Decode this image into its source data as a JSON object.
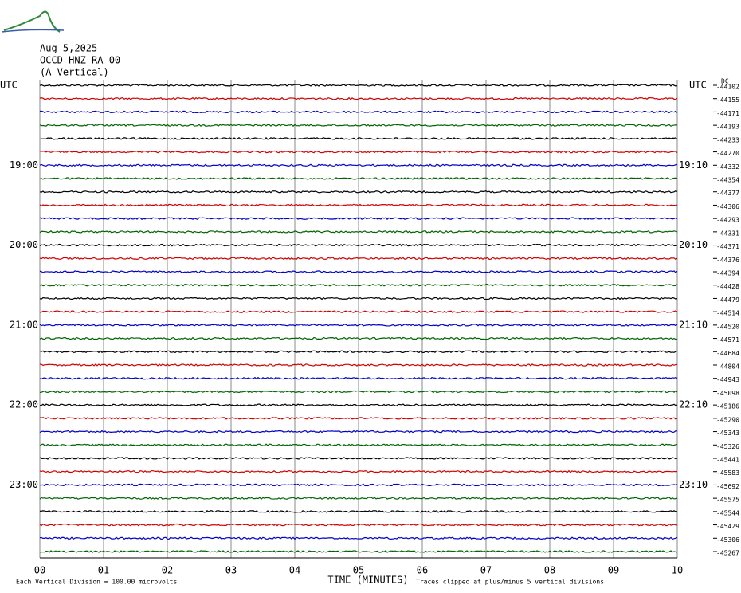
{
  "header": {
    "date": "Aug 5,2025",
    "station": "OCCD HNZ RA 00",
    "component": "(A Vertical)"
  },
  "left_labels": [
    {
      "row": 0,
      "text": "UTC"
    },
    {
      "row": 6,
      "text": "19:00"
    },
    {
      "row": 12,
      "text": "20:00"
    },
    {
      "row": 18,
      "text": "21:00"
    },
    {
      "row": 24,
      "text": "22:00"
    },
    {
      "row": 30,
      "text": "23:00"
    }
  ],
  "right_labels": [
    {
      "row": 0,
      "text": "UTC"
    },
    {
      "row": 6,
      "text": "19:10"
    },
    {
      "row": 12,
      "text": "20:10"
    },
    {
      "row": 18,
      "text": "21:10"
    },
    {
      "row": 24,
      "text": "22:10"
    },
    {
      "row": 30,
      "text": "23:10"
    }
  ],
  "dc_label": "DC",
  "trace_offsets": [
    -44102,
    -44155,
    -44171,
    -44193,
    -44233,
    -44270,
    -44332,
    -44354,
    -44377,
    -44306,
    -44293,
    -44331,
    -44371,
    -44376,
    -44394,
    -44428,
    -44479,
    -44514,
    -44520,
    -44571,
    -44684,
    -44804,
    -44943,
    -45098,
    -45186,
    -45290,
    -45343,
    -45326,
    -45441,
    -45583,
    -45692,
    -45575,
    -45544,
    -45429,
    -45306,
    -45267
  ],
  "trace_colors": [
    "#000000",
    "#d00000",
    "#0000c8",
    "#006400"
  ],
  "x_axis": {
    "labels": [
      "00",
      "01",
      "02",
      "03",
      "04",
      "05",
      "06",
      "07",
      "08",
      "09",
      "10"
    ],
    "title": "TIME (MINUTES)"
  },
  "footer": {
    "scale": "Each Vertical Division =  100.00 microvolts",
    "clip": "Traces clipped at plus/minus 5 vertical divisions"
  }
}
